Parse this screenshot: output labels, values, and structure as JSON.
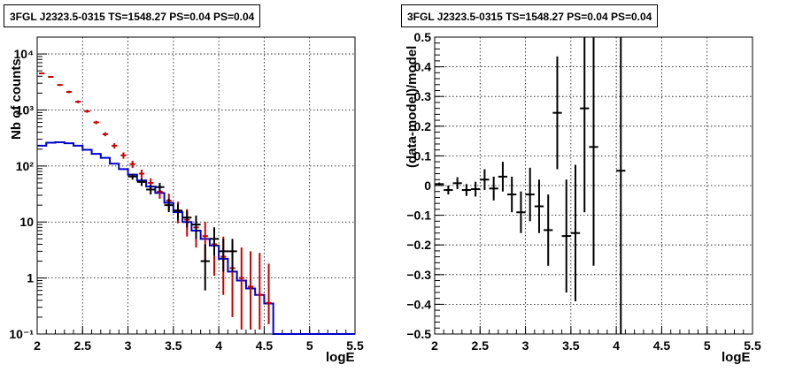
{
  "chart_data": [
    {
      "type": "step-histogram",
      "title": "3FGL J2323.5-0315 TS=1548.27 PS=0.04 PS=0.04",
      "xlabel": "logE",
      "ylabel": "Nb of counts",
      "xlim": [
        2,
        5.5
      ],
      "ylim": [
        0.1,
        20000
      ],
      "yscale": "log",
      "grid": true,
      "xticks": [
        "2",
        "2.5",
        "3",
        "3.5",
        "4",
        "4.5",
        "5",
        "5.5"
      ],
      "yticks": [
        {
          "value": 0.1,
          "label": "10⁻¹"
        },
        {
          "value": 1,
          "label": "1"
        },
        {
          "value": 10,
          "label": "10"
        },
        {
          "value": 100,
          "label": "10²"
        },
        {
          "value": 1000,
          "label": "10³"
        },
        {
          "value": 10000,
          "label": "10⁴"
        }
      ],
      "bin_edges": [
        2.0,
        2.1,
        2.2,
        2.3,
        2.4,
        2.5,
        2.6,
        2.7,
        2.8,
        2.9,
        3.0,
        3.1,
        3.2,
        3.3,
        3.4,
        3.5,
        3.6,
        3.7,
        3.8,
        3.9,
        4.0,
        4.1,
        4.2,
        4.3,
        4.4,
        4.5,
        4.6,
        4.7,
        4.8,
        4.9,
        5.0,
        5.1,
        5.2,
        5.3,
        5.4,
        5.5
      ],
      "series": [
        {
          "role": "model-component",
          "color": "#0000cc",
          "values": [
            230,
            260,
            265,
            255,
            230,
            195,
            165,
            140,
            110,
            88,
            70,
            55,
            43,
            33,
            22,
            15,
            10,
            7,
            5,
            3.8,
            2.2,
            1.3,
            0.9,
            0.65,
            0.5,
            0.35,
            0.1,
            0.1,
            0.1,
            0.1,
            0.1,
            0.1,
            0.1,
            0.1,
            0.1
          ]
        },
        {
          "role": "model-total",
          "color": "#cc0000",
          "values": [
            4500,
            3900,
            2800,
            2100,
            1400,
            950,
            600,
            370,
            230,
            155,
            108,
            73,
            50,
            35,
            24,
            16,
            11,
            8,
            5.6,
            4,
            2.4,
            1.5,
            1.0,
            0.7,
            0.5,
            0.36
          ],
          "err_low": [
            4350,
            3760,
            2690,
            2000,
            1320,
            890,
            560,
            340,
            205,
            135,
            92,
            60,
            40,
            26,
            16,
            9.5,
            5.5,
            3.5,
            2,
            1.1,
            0.5,
            0.2,
            0.12,
            0.12,
            0.12,
            0.15
          ],
          "err_high": [
            4650,
            4050,
            2910,
            2200,
            1480,
            1010,
            640,
            400,
            255,
            175,
            124,
            86,
            60,
            44,
            32,
            23,
            17,
            13,
            10,
            8,
            5.5,
            4.2,
            3.5,
            3,
            2.8,
            1.8
          ]
        },
        {
          "role": "data",
          "color": "#000000",
          "x": [
            3.05,
            3.15,
            3.25,
            3.35,
            3.45,
            3.55,
            3.65,
            3.75,
            3.85,
            3.95,
            4.05,
            4.15
          ],
          "values": [
            65,
            52,
            38,
            42,
            20,
            16,
            12,
            9,
            2,
            5,
            3,
            3
          ],
          "err_low": [
            57,
            44,
            31,
            35,
            15,
            11,
            8,
            5,
            0.6,
            2.5,
            1.3,
            1.3
          ],
          "err_high": [
            73,
            60,
            46,
            50,
            26,
            21,
            16,
            13,
            4,
            8,
            5,
            5
          ]
        }
      ]
    },
    {
      "type": "errorbar",
      "title": "3FGL J2323.5-0315 TS=1548.27 PS=0.04 PS=0.04",
      "xlabel": "logE",
      "ylabel": "(data-model)/model",
      "xlim": [
        2,
        5.5
      ],
      "ylim": [
        -0.5,
        0.5
      ],
      "grid": true,
      "xticks": [
        "2",
        "2.5",
        "3",
        "3.5",
        "4",
        "4.5",
        "5",
        "5.5"
      ],
      "yticks": [
        "−0.5",
        "−0.4",
        "−0.3",
        "−0.2",
        "−0.1",
        "0",
        "0.1",
        "0.2",
        "0.3",
        "0.4",
        "0.5"
      ],
      "points": [
        {
          "x": 2.05,
          "y": 0.005,
          "elo": 0.005,
          "ehi": 0.005
        },
        {
          "x": 2.15,
          "y": -0.015,
          "elo": 0.015,
          "ehi": 0.015
        },
        {
          "x": 2.25,
          "y": 0.008,
          "elo": 0.02,
          "ehi": 0.02
        },
        {
          "x": 2.35,
          "y": -0.015,
          "elo": 0.02,
          "ehi": 0.02
        },
        {
          "x": 2.45,
          "y": -0.012,
          "elo": 0.025,
          "ehi": 0.025
        },
        {
          "x": 2.55,
          "y": 0.02,
          "elo": 0.035,
          "ehi": 0.035
        },
        {
          "x": 2.65,
          "y": -0.01,
          "elo": 0.04,
          "ehi": 0.04
        },
        {
          "x": 2.75,
          "y": 0.03,
          "elo": 0.05,
          "ehi": 0.05
        },
        {
          "x": 2.85,
          "y": -0.03,
          "elo": 0.06,
          "ehi": 0.06
        },
        {
          "x": 2.95,
          "y": -0.09,
          "elo": 0.07,
          "ehi": 0.07
        },
        {
          "x": 3.05,
          "y": -0.03,
          "elo": 0.09,
          "ehi": 0.09
        },
        {
          "x": 3.15,
          "y": -0.07,
          "elo": 0.09,
          "ehi": 0.09
        },
        {
          "x": 3.25,
          "y": -0.15,
          "elo": 0.12,
          "ehi": 0.12
        },
        {
          "x": 3.35,
          "y": 0.245,
          "elo": 0.19,
          "ehi": 0.19
        },
        {
          "x": 3.45,
          "y": -0.17,
          "elo": 0.19,
          "ehi": 0.19
        },
        {
          "x": 3.55,
          "y": -0.16,
          "elo": 0.23,
          "ehi": 0.23
        },
        {
          "x": 3.65,
          "y": 0.26,
          "elo": 0.35,
          "ehi": 0.35
        },
        {
          "x": 3.75,
          "y": 0.13,
          "elo": 0.4,
          "ehi": 0.4
        },
        {
          "x": 4.05,
          "y": 0.05,
          "elo": 0.6,
          "ehi": 0.6
        }
      ]
    }
  ]
}
